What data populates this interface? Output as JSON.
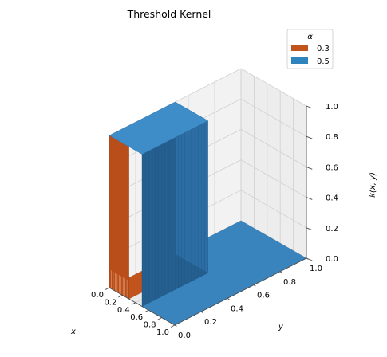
{
  "chart_data": {
    "type": "surface3d",
    "title": "Threshold Kernel",
    "xlabel": "x",
    "ylabel": "y",
    "zlabel": "k(x, y)",
    "xlim": [
      0.0,
      1.0
    ],
    "ylim": [
      0.0,
      1.0
    ],
    "zlim": [
      0.0,
      1.0
    ],
    "x_ticks": [
      "0.0",
      "0.2",
      "0.4",
      "0.6",
      "0.8",
      "1.0"
    ],
    "y_ticks": [
      "0.0",
      "0.2",
      "0.4",
      "0.6",
      "0.8",
      "1.0"
    ],
    "z_ticks": [
      "0.0",
      "0.2",
      "0.4",
      "0.6",
      "0.8",
      "1.0"
    ],
    "grid": true,
    "legend": {
      "title": "α",
      "placement": "top-right",
      "entries": [
        {
          "label": "0.3",
          "color": "#c1531c"
        },
        {
          "label": "0.5",
          "color": "#2f84bd"
        }
      ]
    },
    "series": [
      {
        "name": "0.3",
        "alpha": 0.3,
        "value_when_both_below_alpha": 1.0,
        "value_otherwise": 0.0,
        "color": "#c1531c"
      },
      {
        "name": "0.5",
        "alpha": 0.5,
        "value_when_both_below_alpha": 1.0,
        "value_otherwise": 0.0,
        "color": "#2f84bd"
      }
    ]
  }
}
